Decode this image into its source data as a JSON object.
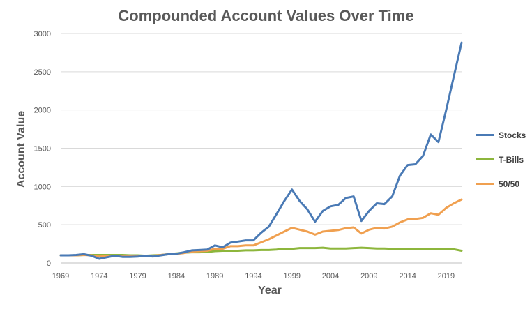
{
  "chart_data": {
    "type": "line",
    "title": "Compounded Account Values Over Time",
    "xlabel": "Year",
    "ylabel": "Account Value",
    "ylim": [
      0,
      3000
    ],
    "xlim": [
      1969,
      2021
    ],
    "yticks": [
      "0",
      "500",
      "1000",
      "1500",
      "2000",
      "2500",
      "3000"
    ],
    "xticks": [
      "1969",
      "1974",
      "1979",
      "1984",
      "1989",
      "1994",
      "1999",
      "2004",
      "2009",
      "2014",
      "2019"
    ],
    "grid": true,
    "legend_position": "right",
    "x": [
      1969,
      1970,
      1971,
      1972,
      1973,
      1974,
      1975,
      1976,
      1977,
      1978,
      1979,
      1980,
      1981,
      1982,
      1983,
      1984,
      1985,
      1986,
      1987,
      1988,
      1989,
      1990,
      1991,
      1992,
      1993,
      1994,
      1995,
      1996,
      1997,
      1998,
      1999,
      2000,
      2001,
      2002,
      2003,
      2004,
      2005,
      2006,
      2007,
      2008,
      2009,
      2010,
      2011,
      2012,
      2013,
      2014,
      2015,
      2016,
      2017,
      2018,
      2019,
      2020,
      2021
    ],
    "series": [
      {
        "name": "Stocks",
        "color": "#4a7ab5",
        "values": [
          100,
          100,
          105,
          115,
          95,
          55,
          75,
          95,
          80,
          80,
          85,
          95,
          85,
          100,
          115,
          120,
          140,
          165,
          170,
          175,
          230,
          205,
          265,
          280,
          295,
          295,
          395,
          475,
          640,
          810,
          960,
          810,
          700,
          540,
          680,
          740,
          760,
          850,
          870,
          550,
          680,
          780,
          770,
          870,
          1140,
          1280,
          1290,
          1400,
          1680,
          1580,
          2000,
          2440,
          2880
        ]
      },
      {
        "name": "T-Bills",
        "color": "#8db63c",
        "values": [
          100,
          100,
          100,
          105,
          105,
          105,
          105,
          105,
          105,
          100,
          100,
          95,
          100,
          105,
          115,
          125,
          135,
          140,
          140,
          145,
          155,
          160,
          160,
          160,
          165,
          165,
          170,
          170,
          175,
          185,
          185,
          195,
          195,
          195,
          200,
          190,
          190,
          190,
          195,
          200,
          195,
          190,
          190,
          185,
          185,
          180,
          180,
          180,
          180,
          180,
          180,
          180,
          160
        ]
      },
      {
        "name": "50/50",
        "color": "#f0a050",
        "values": [
          100,
          100,
          100,
          105,
          100,
          85,
          90,
          95,
          95,
          95,
          90,
          95,
          95,
          105,
          115,
          120,
          130,
          150,
          155,
          160,
          185,
          185,
          220,
          220,
          230,
          230,
          270,
          310,
          360,
          410,
          460,
          435,
          410,
          370,
          410,
          420,
          430,
          455,
          465,
          385,
          435,
          460,
          450,
          475,
          530,
          570,
          575,
          590,
          650,
          630,
          720,
          780,
          830
        ]
      }
    ]
  }
}
